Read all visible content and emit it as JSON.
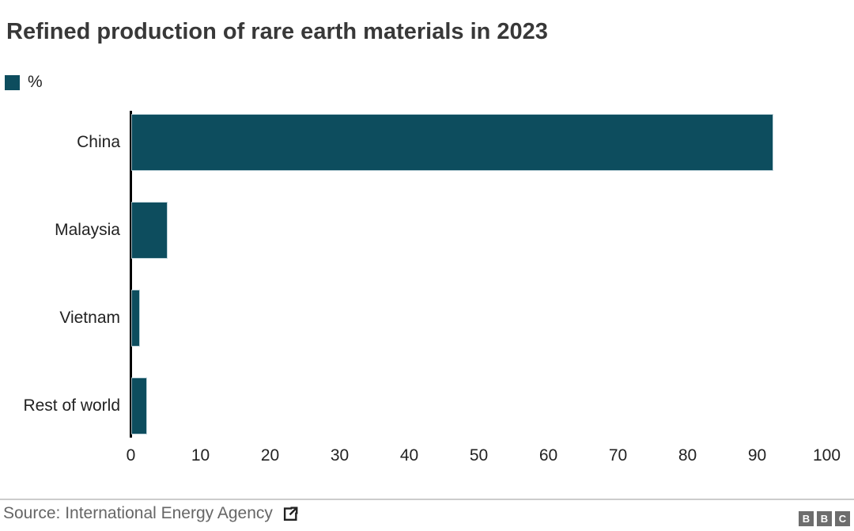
{
  "title": "Refined production of rare earth materials in 2023",
  "legend": {
    "label": "%",
    "swatch_color": "#0d4d5e"
  },
  "chart_data": {
    "type": "bar",
    "orientation": "horizontal",
    "title": "Refined production of rare earth materials in 2023",
    "unit_label": "%",
    "categories": [
      "China",
      "Malaysia",
      "Vietnam",
      "Rest of world"
    ],
    "values": [
      92,
      5,
      1,
      2
    ],
    "xlim": [
      0,
      100
    ],
    "xticks": [
      0,
      10,
      20,
      30,
      40,
      50,
      60,
      70,
      80,
      90,
      100
    ],
    "bar_color": "#0d4d5e",
    "axis_line_color": "#000000",
    "grid": false,
    "legend_position": "top-left"
  },
  "footer": {
    "source_label": "Source: International Energy Agency",
    "external_link_icon": "external-link",
    "logo": {
      "letters": [
        "B",
        "B",
        "C"
      ],
      "box_color": "#6d6d6d",
      "letter_color": "#ffffff"
    }
  }
}
